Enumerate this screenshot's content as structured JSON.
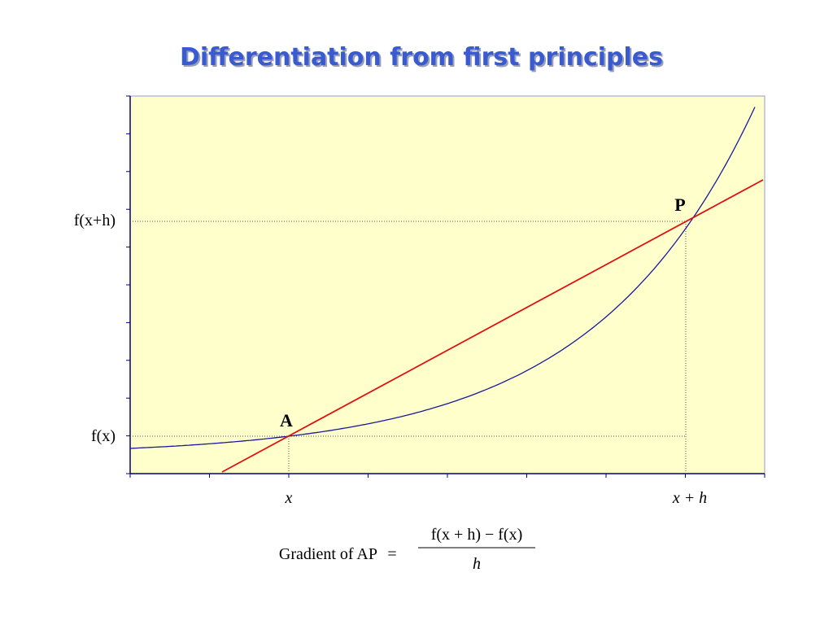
{
  "title": "Differentiation from first principles",
  "y_labels": {
    "upper": "f(x+h)",
    "lower": "f(x)"
  },
  "points": {
    "a": "A",
    "p": "P"
  },
  "x_labels": {
    "left": "x",
    "right": "x + h"
  },
  "formula": {
    "lhs": "Gradient of AP",
    "equals": "=",
    "numerator": "f(x + h) − f(x)",
    "denominator": "h"
  }
}
